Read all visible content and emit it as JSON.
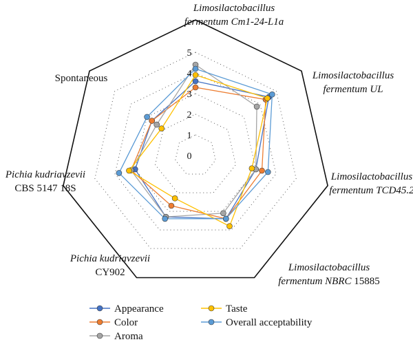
{
  "chart_data": {
    "type": "radar",
    "range": [
      0,
      5
    ],
    "ticks": [
      "0",
      "1",
      "2",
      "3",
      "4",
      "5"
    ],
    "grid": "dotted",
    "legend_position": "bottom",
    "categories": [
      {
        "lines": [
          [
            [
              "Limosilactobacillus",
              true
            ]
          ],
          [
            [
              "fermentum Cm1-24-L1a",
              true
            ]
          ]
        ]
      },
      {
        "lines": [
          [
            [
              "Limosilactobacillus",
              true
            ]
          ],
          [
            [
              "fermentum UL",
              true
            ]
          ]
        ]
      },
      {
        "lines": [
          [
            [
              "Limosilactobacillus",
              true
            ]
          ],
          [
            [
              "fermentum TCD45.2",
              true
            ]
          ]
        ]
      },
      {
        "lines": [
          [
            [
              "Limosilactobacillus",
              true
            ]
          ],
          [
            [
              "fermentum NBRC ",
              true
            ],
            [
              "15885",
              false
            ]
          ]
        ]
      },
      {
        "lines": [
          [
            [
              "Pichia kudriavzevii",
              true
            ]
          ],
          [
            [
              "CY902",
              false
            ]
          ]
        ]
      },
      {
        "lines": [
          [
            [
              "Pichia kudriavzevii",
              true
            ]
          ],
          [
            [
              "CBS 5147 18S",
              false
            ]
          ]
        ]
      },
      {
        "lines": [
          [
            [
              "Spontaneous",
              false
            ]
          ]
        ]
      }
    ],
    "series": [
      {
        "name": "Appearance",
        "color": "#4472C4",
        "values": [
          3.6,
          4.55,
          3.0,
          3.4,
          3.3,
          3.0,
          2.7
        ]
      },
      {
        "name": "Color",
        "color": "#ED7D31",
        "values": [
          3.3,
          4.35,
          3.3,
          3.4,
          2.7,
          3.2,
          2.7
        ]
      },
      {
        "name": "Aroma",
        "color": "#A5A5A5",
        "values": [
          4.4,
          3.8,
          3.0,
          3.1,
          3.3,
          3.2,
          2.4
        ]
      },
      {
        "name": "Taste",
        "color": "#FFC000",
        "values": [
          3.9,
          4.45,
          2.8,
          3.8,
          2.3,
          3.3,
          2.1
        ]
      },
      {
        "name": "Overall acceptability",
        "color": "#5B9BD5",
        "values": [
          4.2,
          4.75,
          3.6,
          3.4,
          3.4,
          3.8,
          3.0
        ]
      }
    ]
  }
}
